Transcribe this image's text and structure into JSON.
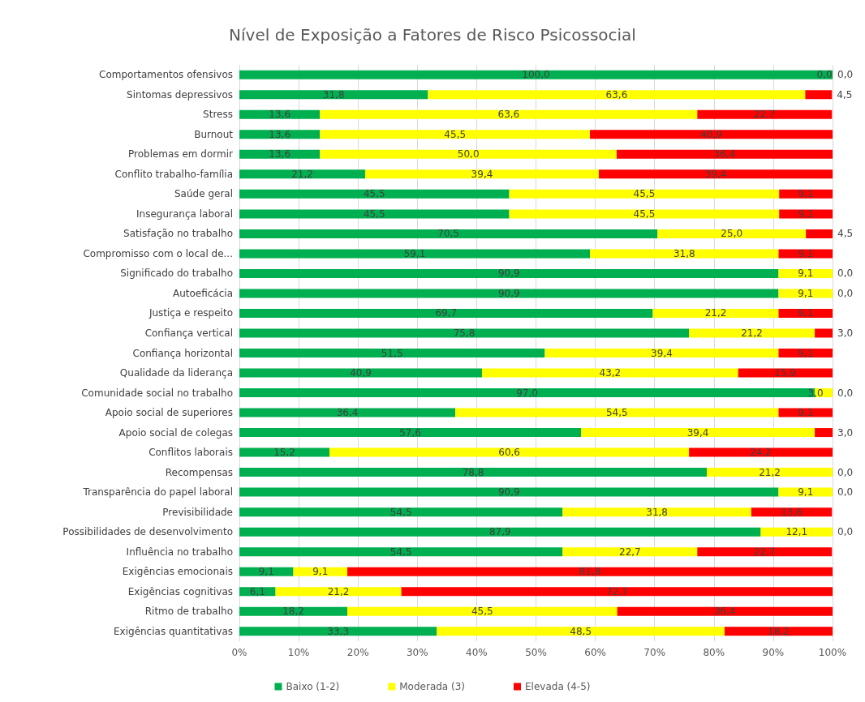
{
  "chart_data": {
    "type": "bar",
    "orientation": "horizontal",
    "stacked": true,
    "title": "Nível de Exposição a Fatores de Risco Psicossocial",
    "categories": [
      "Comportamentos ofensivos",
      "Sintomas depressivos",
      "Stress",
      "Burnout",
      "Problemas em dormir",
      "Conflito trabalho-família",
      "Saúde geral",
      "Insegurança laboral",
      "Satisfação no trabalho",
      "Compromisso com o local de...",
      "Significado do trabalho",
      "Autoeficácia",
      "Justiça e respeito",
      "Confiança vertical",
      "Confiança horizontal",
      "Qualidade da liderança",
      "Comunidade social no trabalho",
      "Apoio social de superiores",
      "Apoio social de colegas",
      "Conflitos laborais",
      "Recompensas",
      "Transparência do papel laboral",
      "Previsibilidade",
      "Possibilidades de desenvolvimento",
      "Influência no trabalho",
      "Exigências emocionais",
      "Exigências cognitivas",
      "Ritmo de trabalho",
      "Exigências quantitativas"
    ],
    "series": [
      {
        "name": "Baixo (1-2)",
        "color": "#00b050",
        "values": [
          100.0,
          31.8,
          13.6,
          13.6,
          13.6,
          21.2,
          45.5,
          45.5,
          70.5,
          59.1,
          90.9,
          90.9,
          69.7,
          75.8,
          51.5,
          40.9,
          97.0,
          36.4,
          57.6,
          15.2,
          78.8,
          90.9,
          54.5,
          87.9,
          54.5,
          9.1,
          6.1,
          18.2,
          33.3
        ],
        "value_labels": [
          "100,0",
          "31,8",
          "13,6",
          "13,6",
          "13,6",
          "21,2",
          "45,5",
          "45,5",
          "70,5",
          "59,1",
          "90,9",
          "90,9",
          "69,7",
          "75,8",
          "51,5",
          "40,9",
          "97,0",
          "36,4",
          "57,6",
          "15,2",
          "78,8",
          "90,9",
          "54,5",
          "87,9",
          "54,5",
          "9,1",
          "6,1",
          "18,2",
          "33,3"
        ]
      },
      {
        "name": "Moderada (3)",
        "color": "#ffff00",
        "values": [
          0.0,
          63.6,
          63.6,
          45.5,
          50.0,
          39.4,
          45.5,
          45.5,
          25.0,
          31.8,
          9.1,
          9.1,
          21.2,
          21.2,
          39.4,
          43.2,
          3.0,
          54.5,
          39.4,
          60.6,
          21.2,
          9.1,
          31.8,
          12.1,
          22.7,
          9.1,
          21.2,
          45.5,
          48.5
        ],
        "value_labels": [
          "0,0",
          "63,6",
          "63,6",
          "45,5",
          "50,0",
          "39,4",
          "45,5",
          "45,5",
          "25,0",
          "31,8",
          "9,1",
          "9,1",
          "21,2",
          "21,2",
          "39,4",
          "43,2",
          "3,0",
          "54,5",
          "39,4",
          "60,6",
          "21,2",
          "9,1",
          "31,8",
          "12,1",
          "22,7",
          "9,1",
          "21,2",
          "45,5",
          "48,5"
        ]
      },
      {
        "name": "Elevada (4-5)",
        "color": "#ff0000",
        "values": [
          0.0,
          4.5,
          22.7,
          40.9,
          36.4,
          39.4,
          9.1,
          9.1,
          4.5,
          9.1,
          0.0,
          0.0,
          9.1,
          3.0,
          9.1,
          15.9,
          0.0,
          9.1,
          3.0,
          24.2,
          0.0,
          0.0,
          13.6,
          0.0,
          22.7,
          81.8,
          72.7,
          36.4,
          18.2
        ],
        "value_labels": [
          "0,0",
          "4,5",
          "22,7",
          "40,9",
          "36,4",
          "39,4",
          "9,1",
          "9,1",
          "4,5",
          "9,1",
          "0,0",
          "0,0",
          "9,1",
          "3,0",
          "9,1",
          "15,9",
          "0,0",
          "9,1",
          "3,0",
          "24,2",
          "0,0",
          "0,0",
          "13,6",
          "0,0",
          "22,7",
          "81,8",
          "72,7",
          "36,4",
          "18,2"
        ]
      }
    ],
    "xlim": [
      0,
      100
    ],
    "xticks": [
      {
        "value": 0,
        "label": "0%"
      },
      {
        "value": 10,
        "label": "10%"
      },
      {
        "value": 20,
        "label": "20%"
      },
      {
        "value": 30,
        "label": "30%"
      },
      {
        "value": 40,
        "label": "40%"
      },
      {
        "value": 50,
        "label": "50%"
      },
      {
        "value": 60,
        "label": "60%"
      },
      {
        "value": 70,
        "label": "70%"
      },
      {
        "value": 80,
        "label": "80%"
      },
      {
        "value": 90,
        "label": "90%"
      },
      {
        "value": 100,
        "label": "100%"
      }
    ],
    "grid": "x",
    "legend": "bottom"
  }
}
